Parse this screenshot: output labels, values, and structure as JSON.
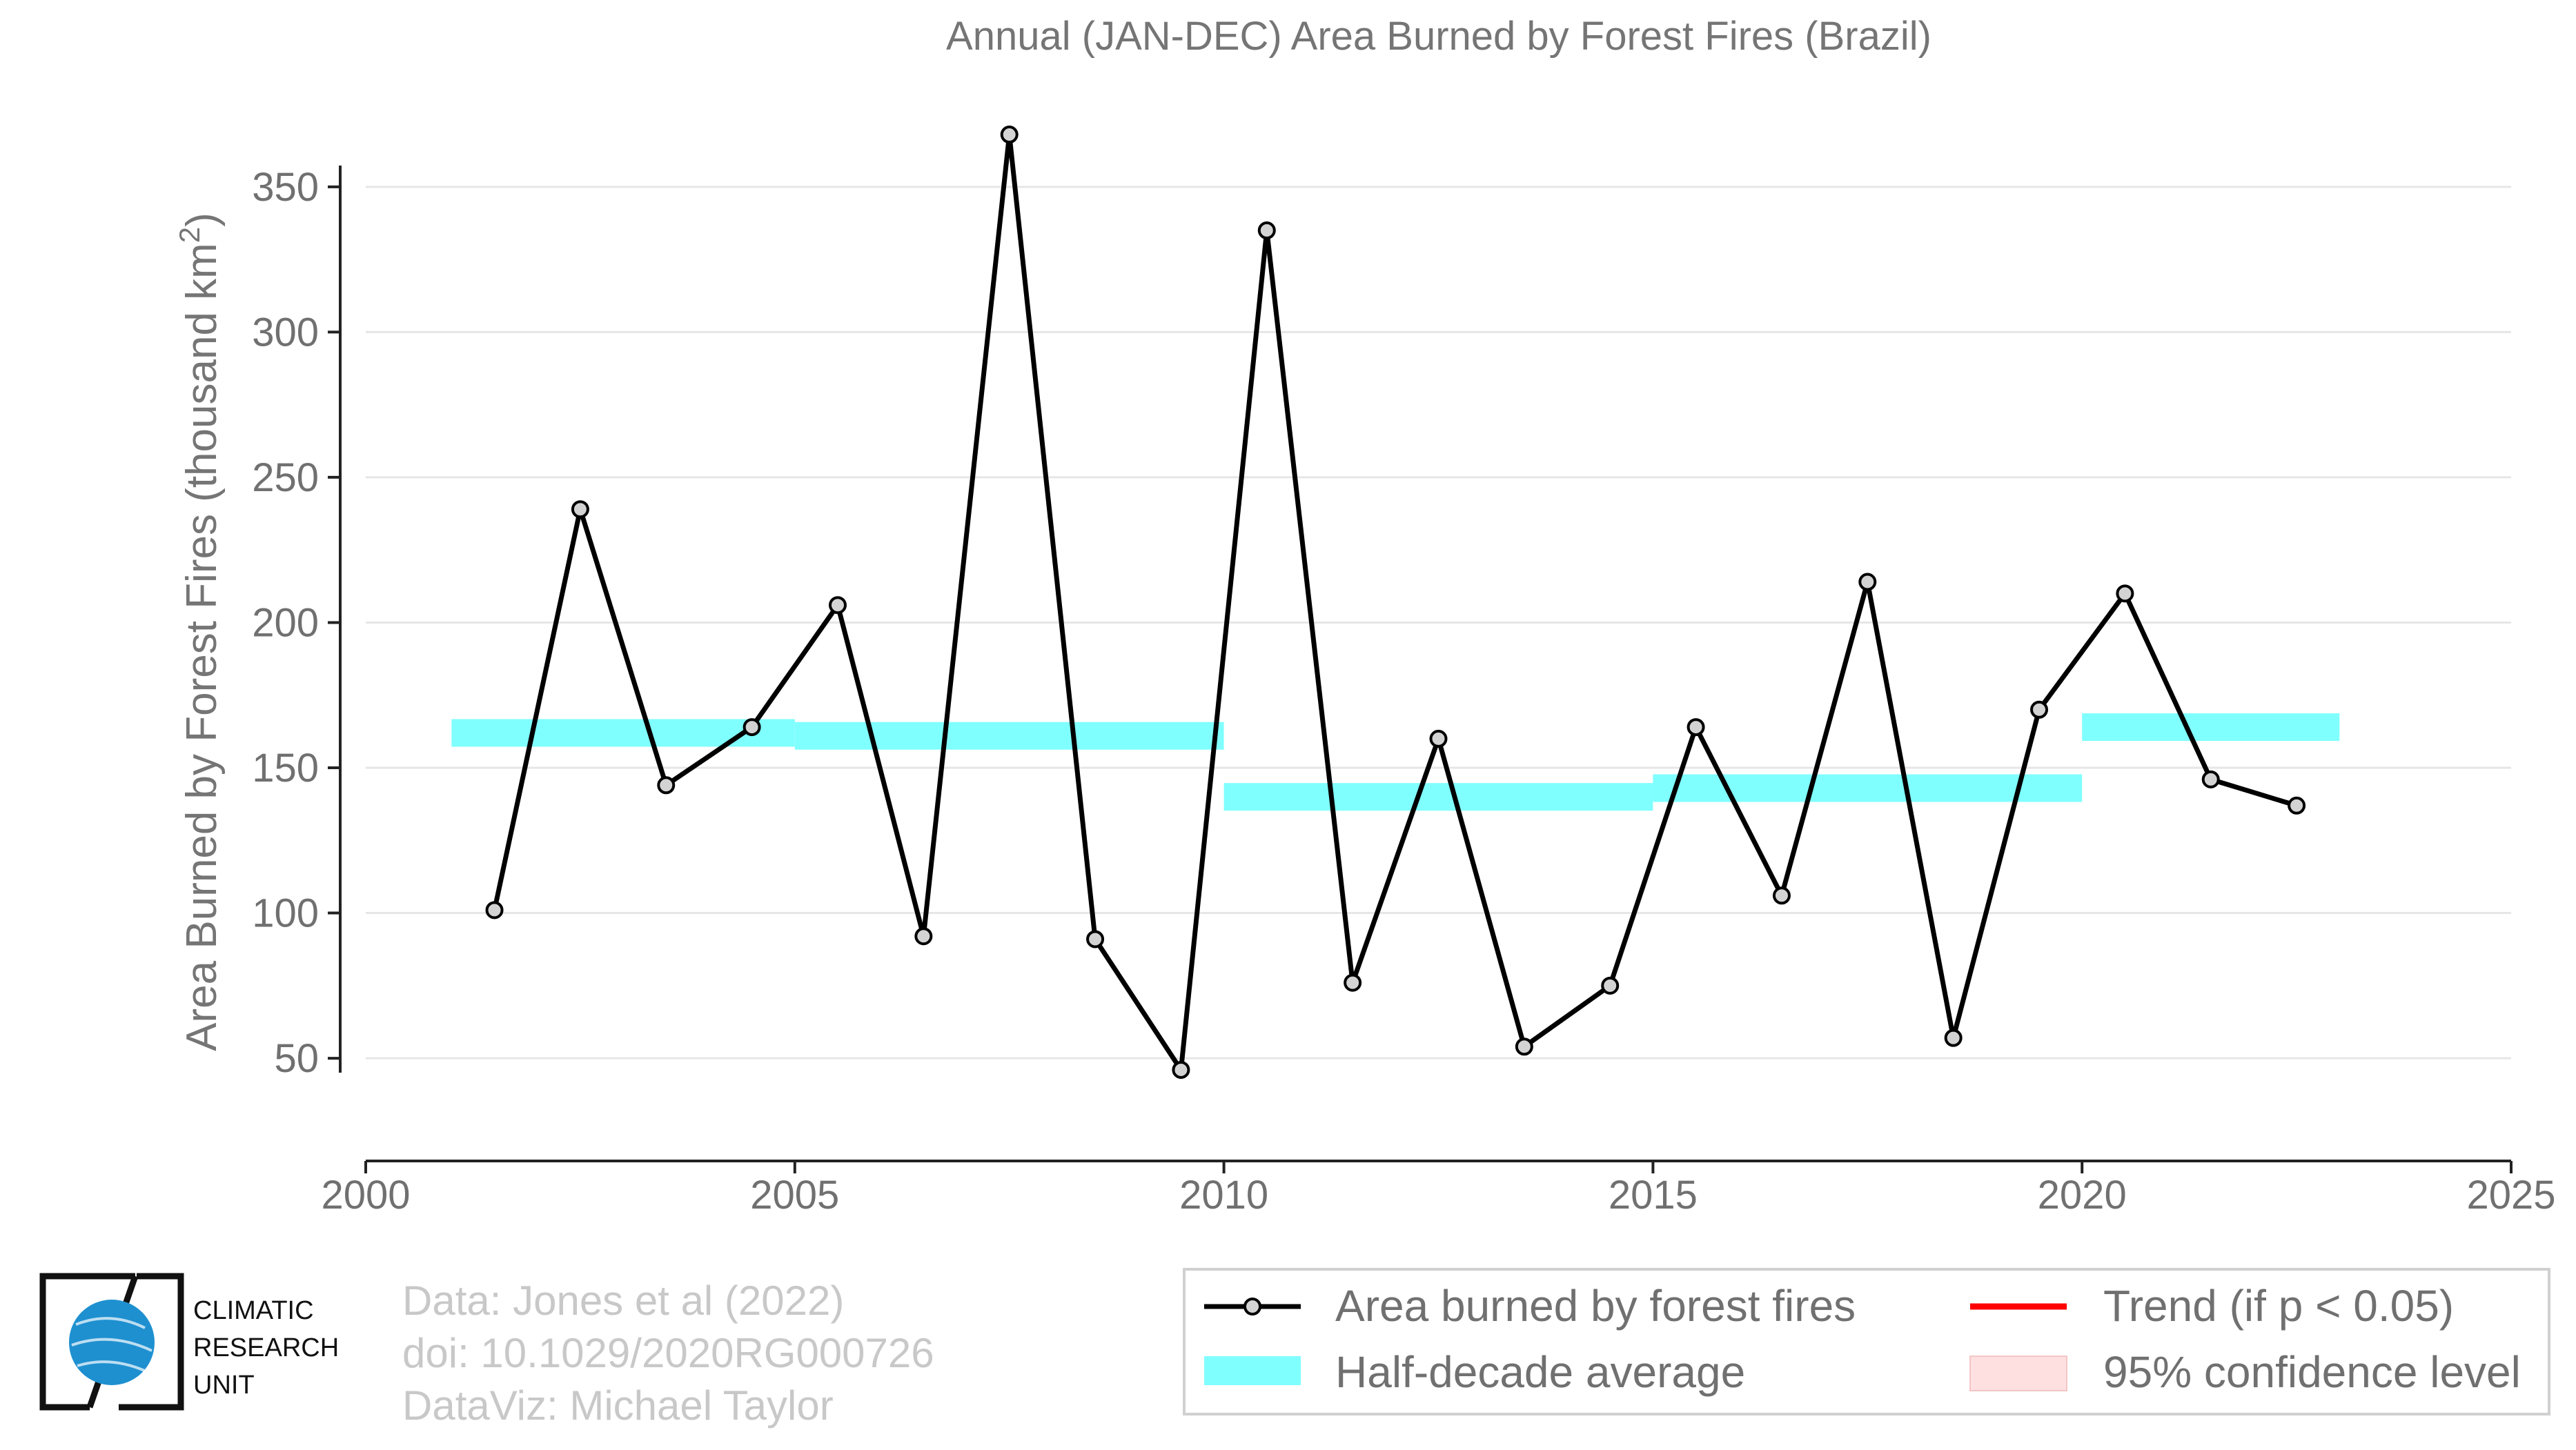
{
  "chart_data": {
    "type": "line",
    "title": "Annual (JAN-DEC) Area Burned by Forest Fires (Brazil)",
    "ylabel": "Area Burned by Forest Fires (thousand km",
    "ylabel_superscript": "2",
    "ylabel_close": ")",
    "xlim": [
      2000,
      2025
    ],
    "ylim": [
      22,
      373
    ],
    "x_ticks": [
      2000,
      2005,
      2010,
      2015,
      2020,
      2025
    ],
    "y_ticks": [
      50,
      100,
      150,
      200,
      250,
      300,
      350
    ],
    "grid": "horizontal",
    "series": [
      {
        "name": "Area burned by forest fires",
        "color": "#000000",
        "marker_fill": "#d3d3d3",
        "x": [
          2001.5,
          2002.5,
          2003.5,
          2004.5,
          2005.5,
          2006.5,
          2007.5,
          2008.5,
          2009.5,
          2010.5,
          2011.5,
          2012.5,
          2013.5,
          2014.5,
          2015.5,
          2016.5,
          2017.5,
          2018.5,
          2019.5,
          2020.5,
          2021.5,
          2022.5
        ],
        "values": [
          101,
          239,
          144,
          164,
          206,
          92,
          368,
          91,
          46,
          335,
          76,
          160,
          54,
          75,
          164,
          106,
          214,
          57,
          170,
          210,
          146,
          137
        ]
      },
      {
        "name": "Half-decade average",
        "color": "#80ffff",
        "segments": [
          {
            "x0": 2001,
            "x1": 2005,
            "value": 162
          },
          {
            "x0": 2005,
            "x1": 2010,
            "value": 161
          },
          {
            "x0": 2010,
            "x1": 2015,
            "value": 140
          },
          {
            "x0": 2015,
            "x1": 2020,
            "value": 143
          },
          {
            "x0": 2020,
            "x1": 2023,
            "value": 164
          }
        ]
      }
    ],
    "legend": {
      "placement": "bottom-right",
      "items": [
        {
          "label": "Area burned by forest fires",
          "kind": "line-marker",
          "color": "#000000"
        },
        {
          "label": "Trend (if p < 0.05)",
          "kind": "line",
          "color": "#ff0000"
        },
        {
          "label": "Half-decade average",
          "kind": "band",
          "color": "#80ffff"
        },
        {
          "label": "95% confidence level",
          "kind": "band",
          "color": "#ffe0e0"
        }
      ]
    }
  },
  "credits": {
    "line1": "Data: Jones et al (2022)",
    "line2": "doi: 10.1029/2020RG000726",
    "line3": "DataViz: Michael Taylor"
  },
  "logo": {
    "line1": "CLIMATIC",
    "line2": "RESEARCH",
    "line3": "UNIT",
    "globe_color": "#1e90d0"
  }
}
